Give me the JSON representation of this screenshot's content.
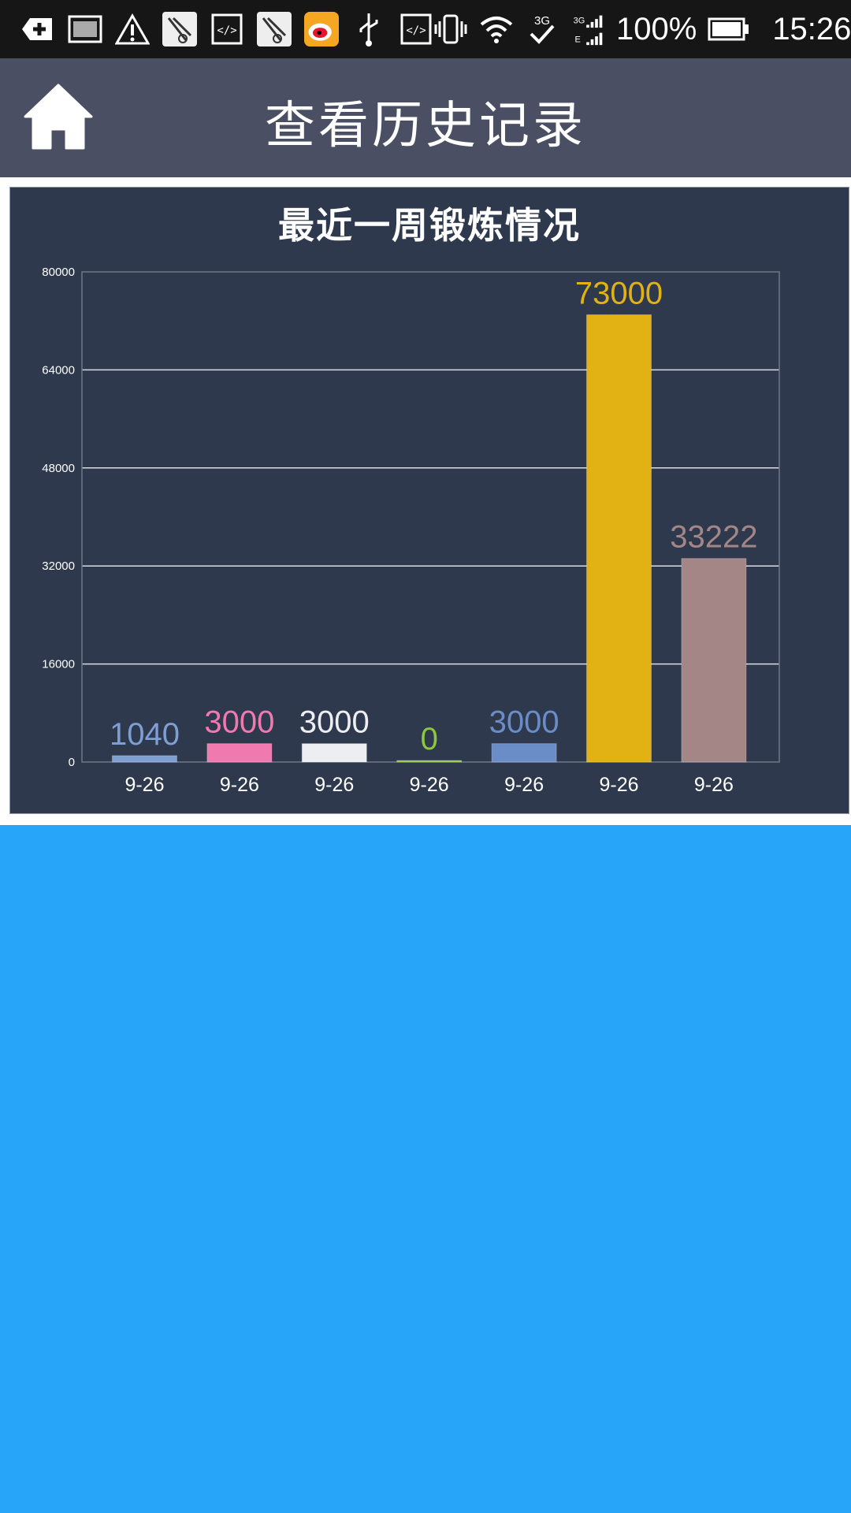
{
  "status_bar": {
    "battery": "100%",
    "time": "15:26",
    "network": "3G",
    "icons": [
      "add-icon",
      "image-icon",
      "warning-icon",
      "app-icon",
      "code-icon",
      "app-icon",
      "weibo-icon",
      "usb-icon",
      "code-icon",
      "vibrate-icon",
      "wifi-icon",
      "sync-icon",
      "signal-icon",
      "battery-icon"
    ]
  },
  "header": {
    "title": "查看历史记录",
    "home_icon": "home-icon",
    "background": "#4a4f64"
  },
  "chart_data": {
    "type": "bar",
    "title": "最近一周锻炼情况",
    "categories": [
      "9-26",
      "9-26",
      "9-26",
      "9-26",
      "9-26",
      "9-26",
      "9-26"
    ],
    "values": [
      1040,
      3000,
      3000,
      0,
      3000,
      73000,
      33222
    ],
    "value_labels": [
      "1040",
      "3000",
      "3000",
      "0",
      "3000",
      "73000",
      "33222"
    ],
    "colors": [
      "#7f9fd2",
      "#f07ab0",
      "#eceef2",
      "#8dc63f",
      "#6a8cc7",
      "#e2b215",
      "#a48686"
    ],
    "yticks": [
      0,
      16000,
      32000,
      48000,
      64000,
      80000
    ],
    "ylim": [
      0,
      80000
    ],
    "grid": true,
    "background": "#2e394d"
  }
}
